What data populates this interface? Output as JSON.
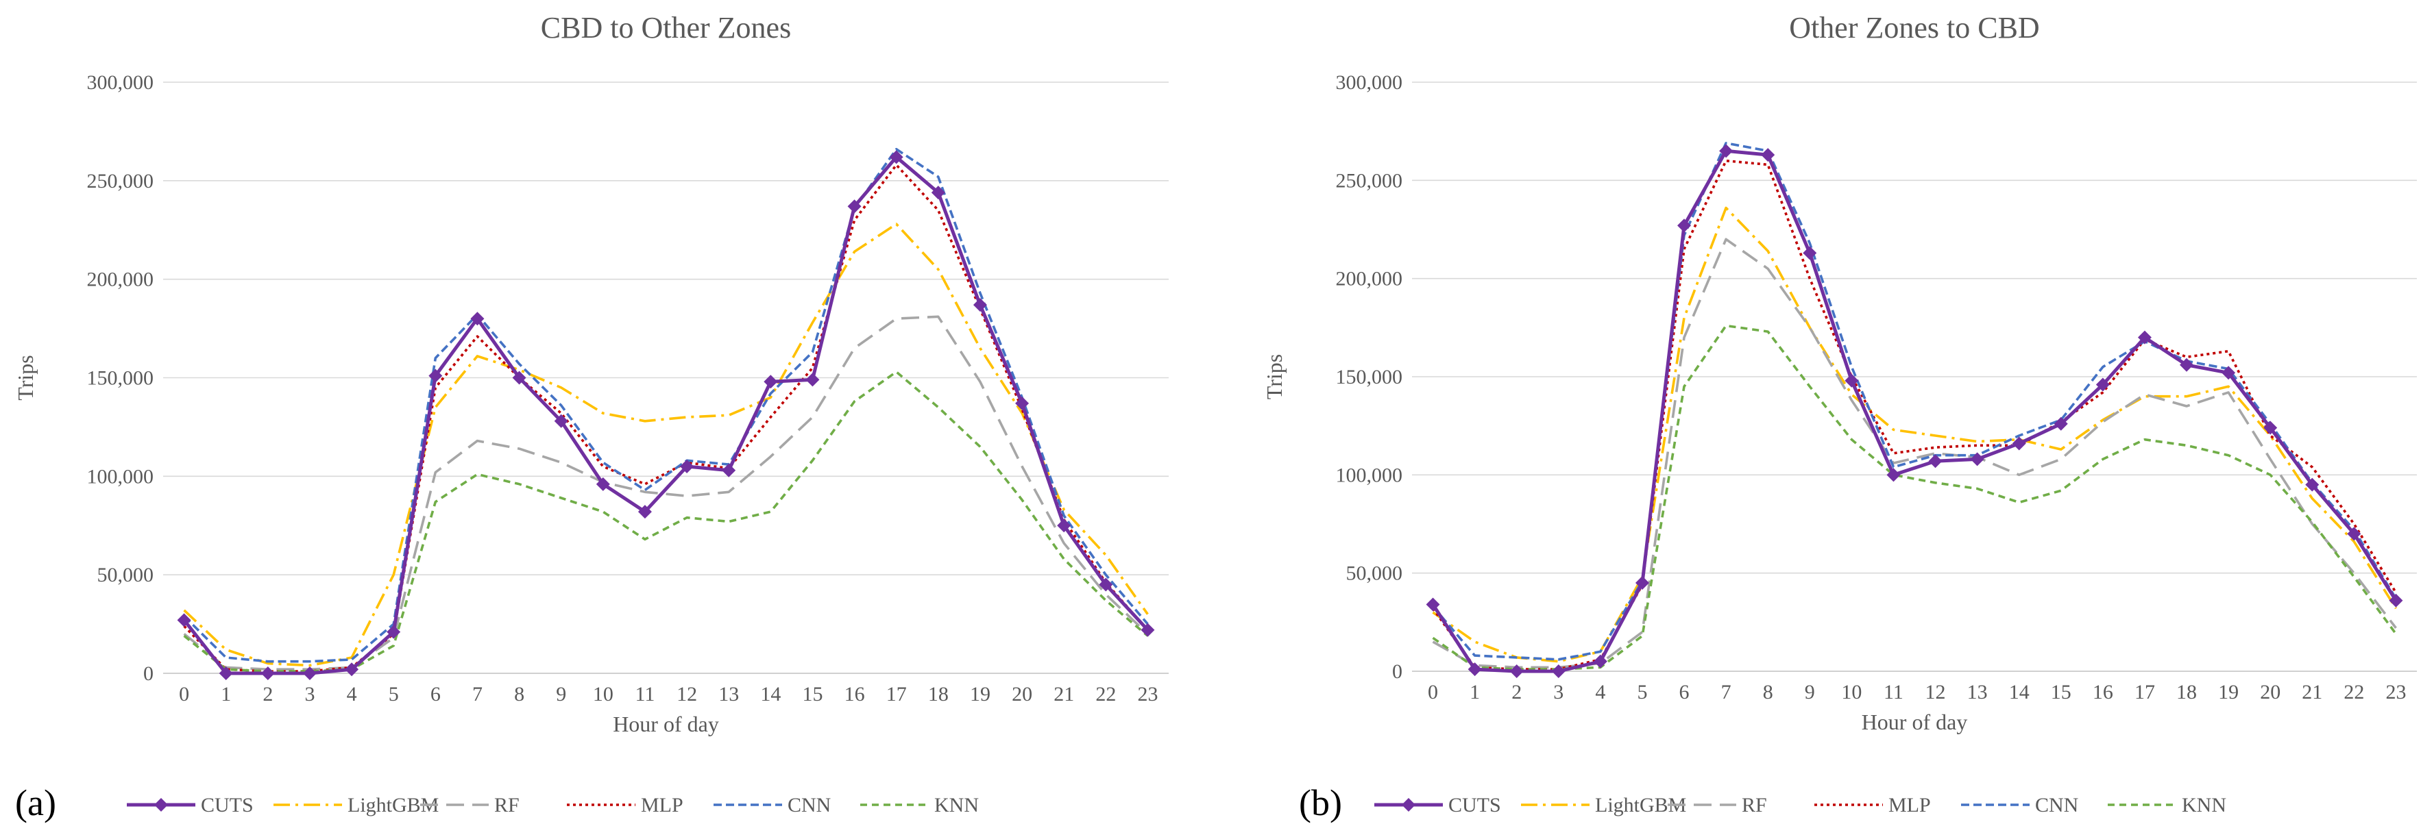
{
  "chart_data": [
    {
      "type": "line",
      "panel_label": "(a)",
      "title": "CBD to Other Zones",
      "xlabel": "Hour of day",
      "ylabel": "Trips",
      "ylim": [
        0,
        300000
      ],
      "yticks": [
        0,
        50000,
        100000,
        150000,
        200000,
        250000,
        300000
      ],
      "ytick_labels": [
        "0",
        "50,000",
        "100,000",
        "150,000",
        "200,000",
        "250,000",
        "300,000"
      ],
      "categories": [
        "0",
        "1",
        "2",
        "3",
        "4",
        "5",
        "6",
        "7",
        "8",
        "9",
        "10",
        "11",
        "12",
        "13",
        "14",
        "15",
        "16",
        "17",
        "18",
        "19",
        "20",
        "21",
        "22",
        "23"
      ],
      "grid": true,
      "legend_position": "bottom",
      "series": [
        {
          "name": "CUTS",
          "color": "#7030A0",
          "style": "solid-diamond",
          "values": [
            27000,
            0,
            0,
            0,
            2000,
            21000,
            151000,
            180000,
            150000,
            128000,
            96000,
            82000,
            105000,
            103000,
            148000,
            149000,
            237000,
            262000,
            244000,
            187000,
            137000,
            75000,
            45000,
            22000
          ]
        },
        {
          "name": "LightGBM",
          "color": "#FFC000",
          "style": "dashdot",
          "values": [
            32000,
            12000,
            5000,
            4000,
            8000,
            50000,
            135000,
            161000,
            154000,
            145000,
            132000,
            128000,
            130000,
            131000,
            140000,
            178000,
            214000,
            228000,
            205000,
            165000,
            132000,
            83000,
            60000,
            30000
          ]
        },
        {
          "name": "RF",
          "color": "#A6A6A6",
          "style": "longdash",
          "values": [
            20000,
            3000,
            2000,
            2000,
            3000,
            18000,
            102000,
            118000,
            114000,
            107000,
            97000,
            92000,
            90000,
            92000,
            110000,
            130000,
            165000,
            180000,
            181000,
            148000,
            105000,
            66000,
            40000,
            20000
          ]
        },
        {
          "name": "MLP",
          "color": "#C00000",
          "style": "dotted",
          "values": [
            24000,
            2000,
            1000,
            1000,
            3000,
            20000,
            145000,
            171000,
            150000,
            132000,
            105000,
            96000,
            107000,
            104000,
            130000,
            155000,
            230000,
            258000,
            235000,
            185000,
            134000,
            78000,
            46000,
            22000
          ]
        },
        {
          "name": "CNN",
          "color": "#4472C4",
          "style": "dashed",
          "values": [
            29000,
            8000,
            6000,
            6000,
            7000,
            25000,
            160000,
            182000,
            157000,
            136000,
            107000,
            93000,
            108000,
            106000,
            142000,
            163000,
            236000,
            266000,
            252000,
            193000,
            140000,
            80000,
            50000,
            25000
          ]
        },
        {
          "name": "KNN",
          "color": "#70AD47",
          "style": "shortdash",
          "values": [
            19000,
            2000,
            1000,
            1000,
            2000,
            14000,
            87000,
            101000,
            96000,
            89000,
            82000,
            68000,
            79000,
            77000,
            82000,
            108000,
            138000,
            153000,
            135000,
            115000,
            88000,
            58000,
            37000,
            19000
          ]
        }
      ]
    },
    {
      "type": "line",
      "panel_label": "(b)",
      "title": "Other Zones to CBD",
      "xlabel": "Hour of day",
      "ylabel": "Trips",
      "ylim": [
        0,
        300000
      ],
      "yticks": [
        0,
        50000,
        100000,
        150000,
        200000,
        250000,
        300000
      ],
      "ytick_labels": [
        "0",
        "50,000",
        "100,000",
        "150,000",
        "200,000",
        "250,000",
        "300,000"
      ],
      "categories": [
        "0",
        "1",
        "2",
        "3",
        "4",
        "5",
        "6",
        "7",
        "8",
        "9",
        "10",
        "11",
        "12",
        "13",
        "14",
        "15",
        "16",
        "17",
        "18",
        "19",
        "20",
        "21",
        "22",
        "23"
      ],
      "grid": true,
      "legend_position": "bottom",
      "series": [
        {
          "name": "CUTS",
          "color": "#7030A0",
          "style": "solid-diamond",
          "values": [
            34000,
            1000,
            0,
            0,
            5000,
            45000,
            227000,
            265000,
            263000,
            213000,
            148000,
            100000,
            107000,
            108000,
            116000,
            126000,
            146000,
            170000,
            156000,
            152000,
            124000,
            95000,
            70000,
            36000
          ]
        },
        {
          "name": "LightGBM",
          "color": "#FFC000",
          "style": "dashdot",
          "values": [
            30000,
            15000,
            7000,
            5000,
            10000,
            48000,
            180000,
            236000,
            214000,
            175000,
            141000,
            123000,
            120000,
            117000,
            118000,
            113000,
            128000,
            140000,
            140000,
            145000,
            120000,
            88000,
            66000,
            32000
          ]
        },
        {
          "name": "RF",
          "color": "#A6A6A6",
          "style": "longdash",
          "values": [
            15000,
            3000,
            2000,
            2000,
            4000,
            20000,
            170000,
            220000,
            205000,
            175000,
            138000,
            106000,
            111000,
            109000,
            100000,
            108000,
            127000,
            141000,
            135000,
            142000,
            108000,
            75000,
            50000,
            22000
          ]
        },
        {
          "name": "MLP",
          "color": "#C00000",
          "style": "dotted",
          "values": [
            32000,
            2000,
            1000,
            1000,
            6000,
            44000,
            215000,
            260000,
            258000,
            200000,
            150000,
            111000,
            114000,
            115000,
            115000,
            127000,
            142000,
            169000,
            160000,
            163000,
            120000,
            104000,
            75000,
            40000
          ]
        },
        {
          "name": "CNN",
          "color": "#4472C4",
          "style": "dashed",
          "values": [
            33000,
            8000,
            7000,
            6000,
            10000,
            46000,
            222000,
            269000,
            265000,
            218000,
            155000,
            104000,
            110000,
            110000,
            120000,
            128000,
            155000,
            168000,
            158000,
            154000,
            126000,
            96000,
            72000,
            37000
          ]
        },
        {
          "name": "KNN",
          "color": "#70AD47",
          "style": "shortdash",
          "values": [
            17000,
            2000,
            1000,
            1000,
            2000,
            18000,
            145000,
            176000,
            173000,
            145000,
            118000,
            100000,
            96000,
            93000,
            86000,
            92000,
            108000,
            118000,
            115000,
            110000,
            100000,
            76000,
            48000,
            19000
          ]
        }
      ]
    }
  ]
}
